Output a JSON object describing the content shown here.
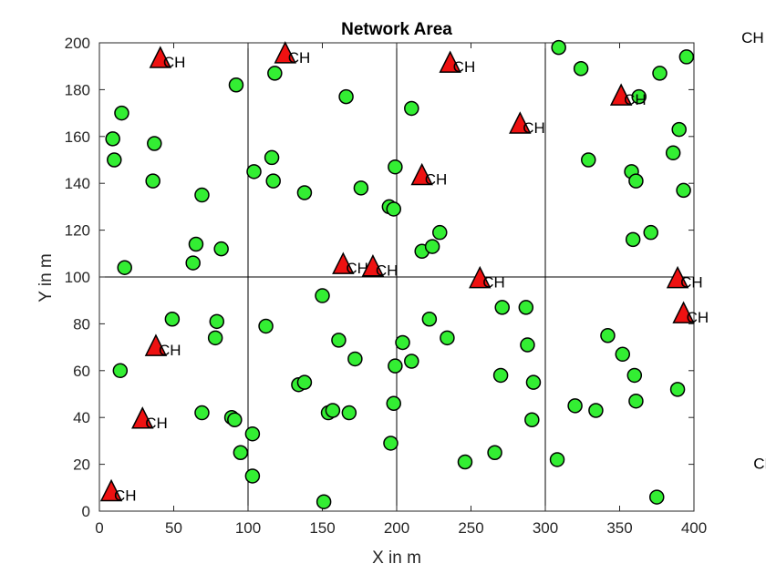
{
  "chart_data": {
    "type": "scatter",
    "title": "Network Area",
    "xlabel": "X in m",
    "ylabel": "Y in m",
    "xlim": [
      0,
      400
    ],
    "ylim": [
      0,
      200
    ],
    "xticks": [
      0,
      50,
      100,
      150,
      200,
      250,
      300,
      350,
      400
    ],
    "yticks": [
      0,
      20,
      40,
      60,
      80,
      100,
      120,
      140,
      160,
      180,
      200
    ],
    "grid_lines_x": [
      100,
      200,
      300
    ],
    "grid_lines_y": [
      100
    ],
    "colors": {
      "node": "#33ee33",
      "cluster_head": "#ee1111",
      "edge": "#000000"
    },
    "series": [
      {
        "marker": "circle",
        "points": [
          [
            9,
            159
          ],
          [
            15,
            170
          ],
          [
            10,
            150
          ],
          [
            37,
            157
          ],
          [
            36,
            141
          ],
          [
            17,
            104
          ],
          [
            69,
            135
          ],
          [
            65,
            114
          ],
          [
            82,
            112
          ],
          [
            63,
            106
          ],
          [
            92,
            182
          ],
          [
            104,
            145
          ],
          [
            116,
            151
          ],
          [
            117,
            141
          ],
          [
            118,
            187
          ],
          [
            138,
            136
          ],
          [
            166,
            177
          ],
          [
            176,
            138
          ],
          [
            199,
            147
          ],
          [
            195,
            130
          ],
          [
            198,
            129
          ],
          [
            210,
            172
          ],
          [
            217,
            111
          ],
          [
            224,
            113
          ],
          [
            229,
            119
          ],
          [
            309,
            198
          ],
          [
            324,
            189
          ],
          [
            363,
            177
          ],
          [
            377,
            187
          ],
          [
            395,
            194
          ],
          [
            390,
            163
          ],
          [
            386,
            153
          ],
          [
            329,
            150
          ],
          [
            358,
            145
          ],
          [
            361,
            141
          ],
          [
            393,
            137
          ],
          [
            359,
            116
          ],
          [
            371,
            119
          ],
          [
            49,
            82
          ],
          [
            79,
            81
          ],
          [
            78,
            74
          ],
          [
            14,
            60
          ],
          [
            69,
            42
          ],
          [
            89,
            40
          ],
          [
            91,
            39
          ],
          [
            95,
            25
          ],
          [
            103,
            33
          ],
          [
            103,
            15
          ],
          [
            112,
            79
          ],
          [
            150,
            92
          ],
          [
            161,
            73
          ],
          [
            172,
            65
          ],
          [
            134,
            54
          ],
          [
            138,
            55
          ],
          [
            154,
            42
          ],
          [
            157,
            43
          ],
          [
            168,
            42
          ],
          [
            151,
            4
          ],
          [
            196,
            29
          ],
          [
            198,
            46
          ],
          [
            199,
            62
          ],
          [
            204,
            72
          ],
          [
            210,
            64
          ],
          [
            222,
            82
          ],
          [
            234,
            74
          ],
          [
            246,
            21
          ],
          [
            266,
            25
          ],
          [
            270,
            58
          ],
          [
            271,
            87
          ],
          [
            287,
            87
          ],
          [
            288,
            71
          ],
          [
            292,
            55
          ],
          [
            291,
            39
          ],
          [
            308,
            22
          ],
          [
            320,
            45
          ],
          [
            334,
            43
          ],
          [
            342,
            75
          ],
          [
            352,
            67
          ],
          [
            360,
            58
          ],
          [
            361,
            47
          ],
          [
            389,
            52
          ],
          [
            375,
            6
          ]
        ]
      },
      {
        "marker": "triangle",
        "label": "CH",
        "points": [
          [
            41,
            193
          ],
          [
            125,
            195
          ],
          [
            236,
            191
          ],
          [
            283,
            165
          ],
          [
            351,
            177
          ],
          [
            217,
            143
          ],
          [
            164,
            105
          ],
          [
            184,
            104
          ],
          [
            256,
            99
          ],
          [
            389,
            99
          ],
          [
            393,
            84
          ],
          [
            38,
            70
          ],
          [
            29,
            39
          ],
          [
            8,
            8
          ]
        ]
      }
    ],
    "stray_labels": [
      {
        "text": "CH",
        "x": 432,
        "y": 200
      },
      {
        "text": "CH",
        "x": 440,
        "y": 18
      }
    ]
  }
}
